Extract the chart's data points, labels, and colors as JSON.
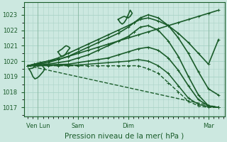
{
  "background_color": "#cce8e0",
  "grid_color": "#aad4c8",
  "line_color": "#1a5c2a",
  "title": "Pression niveau de la mer( hPa )",
  "ylabel_ticks": [
    1017,
    1018,
    1019,
    1020,
    1021,
    1022,
    1023
  ],
  "xtick_labels": [
    "Ven Lun",
    "Sam",
    "Dim",
    "Mar"
  ],
  "xtick_positions": [
    0.5,
    2.5,
    5.0,
    9.0
  ],
  "xlim": [
    -0.2,
    9.8
  ],
  "ylim": [
    1016.4,
    1023.8
  ],
  "lines": [
    {
      "x": [
        0,
        0.3,
        0.6,
        1.0,
        1.5,
        2.0,
        2.5,
        3.0,
        3.5,
        4.0,
        4.5,
        5.0,
        5.5,
        6.0,
        6.5,
        7.0,
        7.5,
        8.0,
        8.5,
        9.0,
        9.5
      ],
      "y": [
        1019.7,
        1019.8,
        1019.9,
        1020.0,
        1020.1,
        1020.3,
        1020.5,
        1020.7,
        1020.9,
        1021.1,
        1021.3,
        1021.5,
        1021.7,
        1021.9,
        1022.1,
        1022.3,
        1022.5,
        1022.7,
        1022.9,
        1023.1,
        1023.3
      ],
      "lw": 1.2,
      "ls": "-",
      "marker": "+",
      "ms": 2.5
    },
    {
      "x": [
        0,
        0.5,
        1.0,
        1.5,
        2.0,
        2.5,
        3.0,
        3.5,
        4.0,
        4.5,
        5.0,
        5.3,
        5.6,
        6.0,
        6.5,
        7.0,
        7.5,
        8.0,
        8.5,
        9.0,
        9.5
      ],
      "y": [
        1019.7,
        1019.85,
        1020.0,
        1020.2,
        1020.5,
        1020.8,
        1021.1,
        1021.4,
        1021.7,
        1022.0,
        1022.3,
        1022.5,
        1022.7,
        1022.8,
        1022.6,
        1022.3,
        1021.8,
        1021.2,
        1020.5,
        1019.8,
        1021.4
      ],
      "lw": 1.2,
      "ls": "-",
      "marker": "+",
      "ms": 2.5
    },
    {
      "x": [
        0,
        0.5,
        1.0,
        1.5,
        2.0,
        2.5,
        3.0,
        3.5,
        4.0,
        4.5,
        5.0,
        5.3,
        5.6,
        6.0,
        6.5,
        7.0,
        7.5,
        8.0,
        8.5,
        9.0,
        9.5
      ],
      "y": [
        1019.7,
        1019.8,
        1019.9,
        1020.1,
        1020.3,
        1020.6,
        1020.9,
        1021.2,
        1021.5,
        1021.8,
        1022.2,
        1022.5,
        1022.8,
        1023.0,
        1022.8,
        1022.3,
        1021.5,
        1020.5,
        1019.3,
        1018.2,
        1017.8
      ],
      "lw": 1.2,
      "ls": "-",
      "marker": "+",
      "ms": 2.5
    },
    {
      "x": [
        0,
        0.5,
        1.0,
        1.5,
        2.0,
        2.5,
        3.0,
        3.5,
        4.0,
        4.5,
        5.0,
        5.3,
        5.6,
        6.0,
        6.5,
        7.0,
        7.5,
        8.0,
        8.5,
        9.0,
        9.5
      ],
      "y": [
        1019.7,
        1019.75,
        1019.8,
        1019.9,
        1020.0,
        1020.2,
        1020.4,
        1020.7,
        1021.0,
        1021.3,
        1021.6,
        1021.9,
        1022.2,
        1022.3,
        1022.0,
        1021.3,
        1020.3,
        1019.0,
        1017.8,
        1017.1,
        1017.0
      ],
      "lw": 1.2,
      "ls": "-",
      "marker": "+",
      "ms": 2.5
    },
    {
      "x": [
        0,
        0.5,
        1.0,
        1.5,
        2.0,
        2.5,
        3.0,
        3.5,
        4.0,
        4.5,
        5.0,
        5.5,
        6.0,
        6.5,
        7.0,
        7.5,
        8.0,
        8.5,
        9.0,
        9.5
      ],
      "y": [
        1019.7,
        1019.72,
        1019.75,
        1019.78,
        1019.8,
        1019.9,
        1020.0,
        1020.1,
        1020.2,
        1020.4,
        1020.6,
        1020.8,
        1020.9,
        1020.7,
        1020.2,
        1019.4,
        1018.4,
        1017.5,
        1017.1,
        1017.0
      ],
      "lw": 1.2,
      "ls": "-",
      "marker": "+",
      "ms": 2.5
    },
    {
      "x": [
        0,
        0.5,
        1.0,
        1.5,
        2.0,
        2.5,
        3.0,
        3.5,
        4.0,
        4.5,
        5.0,
        5.5,
        6.0,
        6.5,
        7.0,
        7.5,
        8.0,
        8.5,
        9.0,
        9.5
      ],
      "y": [
        1019.7,
        1019.71,
        1019.72,
        1019.73,
        1019.74,
        1019.75,
        1019.8,
        1019.85,
        1019.9,
        1019.95,
        1020.0,
        1020.1,
        1020.0,
        1019.7,
        1019.2,
        1018.4,
        1017.6,
        1017.2,
        1017.05,
        1017.0
      ],
      "lw": 1.1,
      "ls": "-",
      "marker": "+",
      "ms": 2.5
    },
    {
      "x": [
        0,
        0.5,
        1.0,
        1.5,
        2.0,
        2.5,
        3.0,
        3.5,
        4.0,
        4.5,
        5.0,
        5.5,
        6.0,
        6.5,
        7.0,
        7.5,
        8.0,
        8.5,
        9.0,
        9.5
      ],
      "y": [
        1019.7,
        1019.7,
        1019.7,
        1019.7,
        1019.7,
        1019.7,
        1019.7,
        1019.7,
        1019.7,
        1019.7,
        1019.7,
        1019.7,
        1019.5,
        1019.2,
        1018.6,
        1018.0,
        1017.4,
        1017.1,
        1017.0,
        1017.0
      ],
      "lw": 1.0,
      "ls": "--",
      "marker": "+",
      "ms": 2.5
    },
    {
      "x": [
        0,
        9.5
      ],
      "y": [
        1019.7,
        1017.0
      ],
      "lw": 1.0,
      "ls": "--",
      "marker": null,
      "ms": 0
    }
  ],
  "squiggles": [
    {
      "x": [
        0.05,
        0.15,
        0.25,
        0.35,
        0.45,
        0.55,
        0.65,
        0.75,
        0.85,
        0.75,
        0.65,
        0.55,
        0.45,
        0.35,
        0.25,
        0.15,
        0.05
      ],
      "y": [
        1019.5,
        1019.3,
        1019.0,
        1018.85,
        1018.9,
        1019.0,
        1019.15,
        1019.3,
        1019.5,
        1019.65,
        1019.8,
        1019.85,
        1019.78,
        1019.65,
        1019.55,
        1019.52,
        1019.5
      ]
    },
    {
      "x": [
        1.5,
        1.6,
        1.7,
        1.8,
        1.9,
        2.0,
        2.1,
        2.0,
        1.9,
        1.8,
        1.7,
        1.6,
        1.5
      ],
      "y": [
        1020.6,
        1020.4,
        1020.3,
        1020.35,
        1020.5,
        1020.7,
        1020.85,
        1020.95,
        1021.0,
        1020.9,
        1020.78,
        1020.7,
        1020.6
      ]
    },
    {
      "x": [
        4.5,
        4.6,
        4.7,
        4.8,
        4.9,
        5.0,
        5.1,
        5.2,
        5.1,
        5.0,
        4.9,
        4.8,
        4.7,
        4.6,
        4.5
      ],
      "y": [
        1022.7,
        1022.5,
        1022.4,
        1022.5,
        1022.7,
        1023.0,
        1023.3,
        1023.1,
        1022.9,
        1022.8,
        1022.85,
        1022.9,
        1022.85,
        1022.78,
        1022.7
      ]
    }
  ]
}
